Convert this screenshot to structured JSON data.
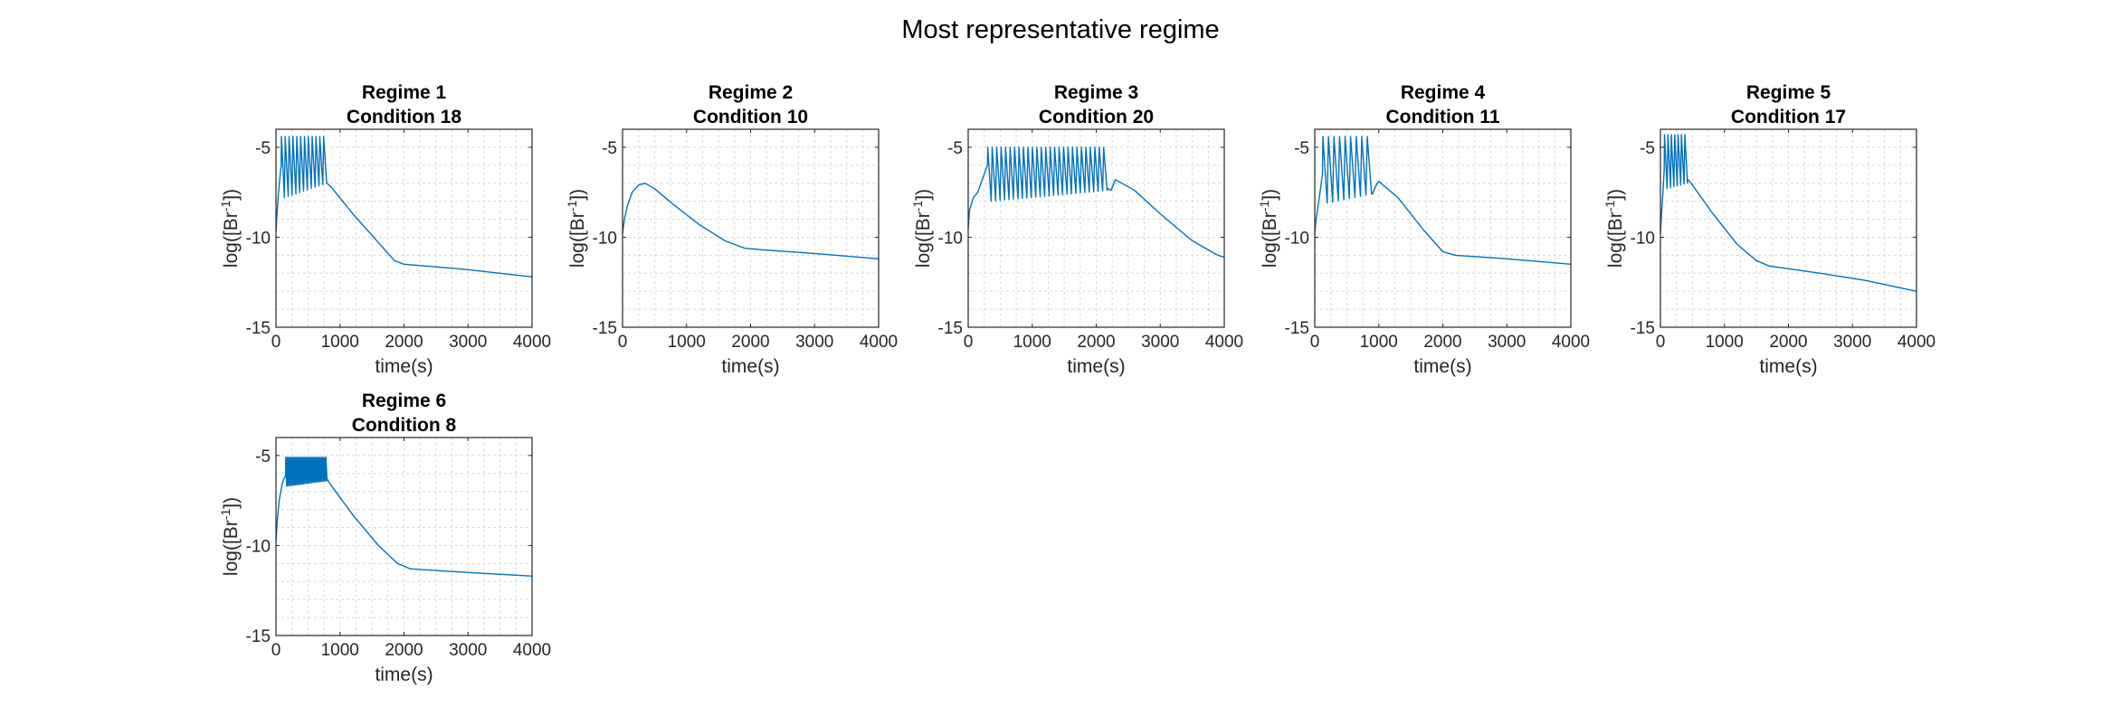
{
  "figure": {
    "title": "Most representative regime"
  },
  "colors": {
    "series": "#0072BD"
  },
  "chart_data": [
    {
      "type": "line",
      "title": [
        "Regime 1",
        "Condition 18"
      ],
      "xlabel": "time(s)",
      "ylabel_base": "log([Br",
      "ylabel_sup": "-1",
      "ylabel_end": "])",
      "xlim": [
        0,
        4000
      ],
      "ylim": [
        -15,
        -4
      ],
      "xticks": [
        "0",
        "1000",
        "2000",
        "3000",
        "4000"
      ],
      "yticks": [
        "-5",
        "-10",
        "-15"
      ],
      "grid": true,
      "oscillation": {
        "start": 80,
        "end": 800,
        "count": 12,
        "peak": -4.4,
        "trough": -7.8,
        "trough_end": -7.0
      },
      "series": [
        {
          "x": [
            0,
            10,
            40,
            80,
            800,
            860,
            1200,
            1600,
            1850,
            2000,
            3000,
            4000
          ],
          "y": [
            -9.7,
            -9.0,
            -7.5,
            -6.0,
            -7.0,
            -7.2,
            -8.7,
            -10.3,
            -11.3,
            -11.5,
            -11.8,
            -12.2
          ]
        }
      ]
    },
    {
      "type": "line",
      "title": [
        "Regime 2",
        "Condition 10"
      ],
      "xlabel": "time(s)",
      "ylabel_base": "log([Br",
      "ylabel_sup": "-1",
      "ylabel_end": "])",
      "xlim": [
        0,
        4000
      ],
      "ylim": [
        -15,
        -4
      ],
      "xticks": [
        "0",
        "1000",
        "2000",
        "3000",
        "4000"
      ],
      "yticks": [
        "-5",
        "-10",
        "-15"
      ],
      "grid": true,
      "series": [
        {
          "x": [
            0,
            30,
            80,
            150,
            250,
            350,
            500,
            800,
            1200,
            1600,
            1900,
            2200,
            3000,
            4000
          ],
          "y": [
            -9.8,
            -9.0,
            -8.2,
            -7.5,
            -7.1,
            -7.0,
            -7.3,
            -8.2,
            -9.3,
            -10.2,
            -10.6,
            -10.7,
            -10.9,
            -11.2
          ]
        }
      ]
    },
    {
      "type": "line",
      "title": [
        "Regime 3",
        "Condition 20"
      ],
      "xlabel": "time(s)",
      "ylabel_base": "log([Br",
      "ylabel_sup": "-1",
      "ylabel_end": "])",
      "xlim": [
        0,
        4000
      ],
      "ylim": [
        -15,
        -4
      ],
      "xticks": [
        "0",
        "1000",
        "2000",
        "3000",
        "4000"
      ],
      "yticks": [
        "-5",
        "-10",
        "-15"
      ],
      "grid": true,
      "oscillation": {
        "start": 300,
        "end": 2180,
        "count": 27,
        "peak": -5.0,
        "trough": -8.0,
        "trough_end": -7.4
      },
      "series": [
        {
          "x": [
            0,
            20,
            80,
            150,
            220,
            300,
            2180,
            2230,
            2300,
            2600,
            3000,
            3500,
            3900,
            4000
          ],
          "y": [
            -9.5,
            -8.5,
            -7.8,
            -7.5,
            -6.8,
            -6.0,
            -7.3,
            -7.4,
            -6.8,
            -7.4,
            -8.7,
            -10.2,
            -11.0,
            -11.1
          ]
        }
      ]
    },
    {
      "type": "line",
      "title": [
        "Regime 4",
        "Condition 11"
      ],
      "xlabel": "time(s)",
      "ylabel_base": "log([Br",
      "ylabel_sup": "-1",
      "ylabel_end": "])",
      "xlim": [
        0,
        4000
      ],
      "ylim": [
        -15,
        -4
      ],
      "xticks": [
        "0",
        "1000",
        "2000",
        "3000",
        "4000"
      ],
      "yticks": [
        "-5",
        "-10",
        "-15"
      ],
      "grid": true,
      "oscillation": {
        "start": 120,
        "end": 900,
        "count": 9,
        "peak": -4.4,
        "trough": -8.1,
        "trough_end": -7.6
      },
      "series": [
        {
          "x": [
            0,
            20,
            70,
            120,
            900,
            960,
            1000,
            1300,
            1700,
            2000,
            2200,
            3000,
            4000
          ],
          "y": [
            -9.8,
            -9.0,
            -7.8,
            -6.5,
            -7.6,
            -7.1,
            -6.9,
            -7.8,
            -9.6,
            -10.8,
            -11.0,
            -11.2,
            -11.5
          ]
        }
      ]
    },
    {
      "type": "line",
      "title": [
        "Regime 5",
        "Condition 17"
      ],
      "xlabel": "time(s)",
      "ylabel_base": "log([Br",
      "ylabel_sup": "-1",
      "ylabel_end": "])",
      "xlim": [
        0,
        4000
      ],
      "ylim": [
        -15,
        -4
      ],
      "xticks": [
        "0",
        "1000",
        "2000",
        "3000",
        "4000"
      ],
      "yticks": [
        "-5",
        "-10",
        "-15"
      ],
      "grid": true,
      "oscillation": {
        "start": 60,
        "end": 430,
        "count": 7,
        "peak": -4.3,
        "trough": -7.3,
        "trough_end": -7.0
      },
      "series": [
        {
          "x": [
            0,
            15,
            40,
            60,
            430,
            480,
            800,
            1200,
            1500,
            1700,
            2500,
            3200,
            4000
          ],
          "y": [
            -9.8,
            -8.8,
            -7.5,
            -6.2,
            -6.8,
            -7.0,
            -8.6,
            -10.4,
            -11.3,
            -11.6,
            -12.0,
            -12.4,
            -13.0
          ]
        }
      ]
    },
    {
      "type": "line",
      "title": [
        "Regime 6",
        "Condition 8"
      ],
      "xlabel": "time(s)",
      "ylabel_base": "log([Br",
      "ylabel_sup": "-1",
      "ylabel_end": "])",
      "xlim": [
        0,
        4000
      ],
      "ylim": [
        -15,
        -4
      ],
      "xticks": [
        "0",
        "1000",
        "2000",
        "3000",
        "4000"
      ],
      "yticks": [
        "-5",
        "-10",
        "-15"
      ],
      "grid": true,
      "oscillation": {
        "start": 150,
        "end": 800,
        "count": 30,
        "peak": -5.1,
        "trough": -6.7,
        "trough_end": -6.4
      },
      "series": [
        {
          "x": [
            0,
            15,
            50,
            100,
            150,
            800,
            850,
            1200,
            1600,
            1900,
            2100,
            3000,
            4000
          ],
          "y": [
            -9.8,
            -8.8,
            -7.5,
            -6.5,
            -6.1,
            -6.3,
            -6.6,
            -8.3,
            -10.0,
            -11.0,
            -11.3,
            -11.5,
            -11.7
          ]
        }
      ]
    }
  ]
}
